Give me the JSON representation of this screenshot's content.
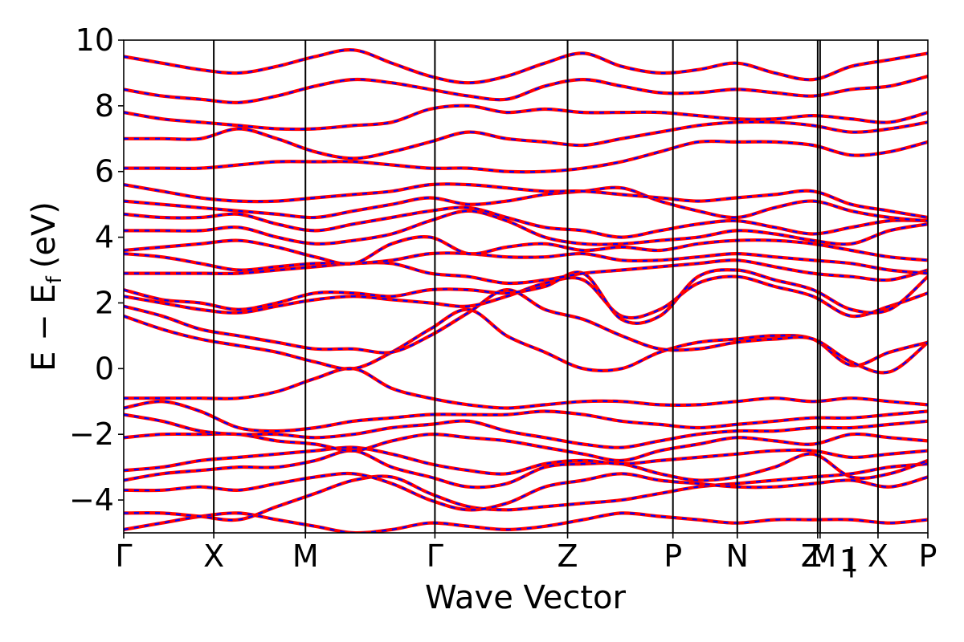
{
  "chart_data": {
    "type": "line",
    "title": "",
    "xlabel": "Wave Vector",
    "ylabel_main": "E − E",
    "ylabel_sub": "f",
    "ylabel_unit": "(eV)",
    "ylim": [
      -5,
      10
    ],
    "yticks": [
      -4,
      -2,
      0,
      2,
      4,
      6,
      8,
      10
    ],
    "ytick_labels": [
      "−4",
      "−2",
      "0",
      "2",
      "4",
      "6",
      "8",
      "10"
    ],
    "xlim": [
      0,
      1
    ],
    "kpoints": [
      {
        "label": "Γ",
        "x": 0.0
      },
      {
        "label": "X",
        "x": 0.112
      },
      {
        "label": "M",
        "x": 0.226
      },
      {
        "label": "Γ",
        "x": 0.387
      },
      {
        "label": "Z",
        "x": 0.552
      },
      {
        "label": "P",
        "x": 0.683
      },
      {
        "label": "N",
        "x": 0.763
      },
      {
        "label": "Z",
        "x": 0.863
      },
      {
        "label": "M",
        "x": 0.866
      },
      {
        "label": "X",
        "x": 0.938
      },
      {
        "label": "P",
        "x": 1.0
      }
    ],
    "kpoint_overlay_labels": [
      {
        "label": "Z",
        "x": 0.863
      },
      {
        "label": "M",
        "x": 0.866
      },
      {
        "label": "1",
        "x": 0.88
      },
      {
        "label": "|",
        "x": 0.905
      },
      {
        "label": "X",
        "x": 0.938
      },
      {
        "label": "P",
        "x": 1.0
      }
    ],
    "colors": {
      "spin_up": "#ff0000",
      "spin_down": "#0000ff"
    },
    "series": [
      {
        "color": "#ff0000",
        "style": "solid",
        "role": "bands"
      },
      {
        "color": "#0000ff",
        "style": "dashed",
        "role": "bands"
      }
    ],
    "bands": [
      [
        -4.9,
        -4.7,
        -4.5,
        -4.4,
        -4.6,
        -4.8,
        -5.0,
        -4.9,
        -4.7,
        -4.8,
        -4.9,
        -4.8,
        -4.6,
        -4.4,
        -4.5,
        -4.6,
        -4.7,
        -4.6,
        -4.6,
        -4.6,
        -4.7,
        -4.6
      ],
      [
        -4.4,
        -4.4,
        -4.5,
        -4.6,
        -4.2,
        -3.8,
        -3.4,
        -3.3,
        -3.8,
        -4.2,
        -4.3,
        -4.2,
        -4.1,
        -4.0,
        -3.8,
        -3.6,
        -3.5,
        -3.4,
        -3.3,
        -3.2,
        -3.0,
        -2.9
      ],
      [
        -3.7,
        -3.7,
        -3.6,
        -3.7,
        -3.5,
        -3.3,
        -3.2,
        -3.5,
        -4.0,
        -4.3,
        -4.1,
        -3.6,
        -3.4,
        -3.2,
        -3.4,
        -3.5,
        -3.6,
        -3.6,
        -3.5,
        -3.4,
        -3.6,
        -3.3
      ],
      [
        -3.4,
        -3.2,
        -3.1,
        -3.0,
        -3.0,
        -2.8,
        -2.5,
        -3.0,
        -3.3,
        -3.6,
        -3.5,
        -3.0,
        -2.9,
        -2.9,
        -3.2,
        -3.4,
        -3.3,
        -3.0,
        -2.6,
        -3.3,
        -3.2,
        -2.8
      ],
      [
        -3.1,
        -3.0,
        -2.8,
        -2.7,
        -2.6,
        -2.5,
        -2.4,
        -2.6,
        -2.9,
        -3.1,
        -3.2,
        -2.9,
        -2.8,
        -2.9,
        -2.8,
        -2.7,
        -2.6,
        -2.5,
        -2.5,
        -2.7,
        -2.6,
        -2.5
      ],
      [
        -2.1,
        -2.0,
        -2.0,
        -2.0,
        -2.2,
        -2.3,
        -2.5,
        -2.2,
        -2.0,
        -2.1,
        -2.2,
        -2.4,
        -2.6,
        -2.8,
        -2.5,
        -2.3,
        -2.1,
        -2.2,
        -2.3,
        -2.0,
        -2.1,
        -2.2
      ],
      [
        -1.4,
        -1.6,
        -1.9,
        -2.0,
        -2.0,
        -2.1,
        -2.0,
        -1.8,
        -1.7,
        -1.6,
        -1.9,
        -2.1,
        -2.3,
        -2.4,
        -2.2,
        -2.0,
        -1.9,
        -1.9,
        -1.8,
        -1.8,
        -1.7,
        -1.6
      ],
      [
        -1.2,
        -1.0,
        -1.3,
        -1.8,
        -1.9,
        -1.8,
        -1.6,
        -1.5,
        -1.4,
        -1.4,
        -1.4,
        -1.3,
        -1.4,
        -1.6,
        -1.7,
        -1.8,
        -1.7,
        -1.6,
        -1.5,
        -1.5,
        -1.4,
        -1.3
      ],
      [
        -0.9,
        -0.9,
        -0.9,
        -0.9,
        -0.7,
        -0.3,
        0.0,
        -0.6,
        -0.9,
        -1.1,
        -1.2,
        -1.1,
        -1.0,
        -1.0,
        -1.1,
        -1.1,
        -1.0,
        -0.9,
        -1.0,
        -0.9,
        -1.0,
        -1.1
      ],
      [
        1.6,
        1.2,
        0.9,
        0.7,
        0.5,
        0.2,
        0.0,
        0.5,
        1.2,
        1.8,
        1.0,
        0.5,
        0.0,
        0.0,
        0.5,
        0.8,
        0.9,
        1.0,
        0.9,
        0.1,
        0.5,
        0.8
      ],
      [
        1.9,
        1.6,
        1.2,
        1.0,
        0.8,
        0.6,
        0.6,
        0.5,
        1.0,
        1.7,
        2.4,
        1.8,
        1.5,
        1.0,
        0.6,
        0.6,
        0.8,
        0.9,
        0.9,
        0.2,
        -0.1,
        0.8
      ],
      [
        2.2,
        2.0,
        1.8,
        1.7,
        1.9,
        2.1,
        2.2,
        2.1,
        2.0,
        1.9,
        2.2,
        2.6,
        2.7,
        1.6,
        1.8,
        2.6,
        2.8,
        2.5,
        2.2,
        1.6,
        1.9,
        2.3
      ],
      [
        2.4,
        2.1,
        2.0,
        1.8,
        2.0,
        2.3,
        2.3,
        2.2,
        2.4,
        2.4,
        2.3,
        2.5,
        2.9,
        1.5,
        1.6,
        2.8,
        3.0,
        2.7,
        2.4,
        1.8,
        1.8,
        2.8
      ],
      [
        2.9,
        2.9,
        2.9,
        2.9,
        3.0,
        3.1,
        3.2,
        3.2,
        2.9,
        2.8,
        2.6,
        2.7,
        2.9,
        3.0,
        3.1,
        3.2,
        3.3,
        3.1,
        2.9,
        2.8,
        2.7,
        3.0
      ],
      [
        3.5,
        3.4,
        3.2,
        3.0,
        3.1,
        3.2,
        3.2,
        3.3,
        3.5,
        3.5,
        3.4,
        3.4,
        3.5,
        3.3,
        3.3,
        3.4,
        3.5,
        3.4,
        3.3,
        3.2,
        3.0,
        2.9
      ],
      [
        3.6,
        3.7,
        3.8,
        3.9,
        3.7,
        3.4,
        3.2,
        3.8,
        4.0,
        3.5,
        3.7,
        3.8,
        3.6,
        3.7,
        3.6,
        3.8,
        3.9,
        3.9,
        3.8,
        3.6,
        3.4,
        3.3
      ],
      [
        4.2,
        4.2,
        4.2,
        4.3,
        4.0,
        3.8,
        3.9,
        4.1,
        4.5,
        4.8,
        4.5,
        4.0,
        3.8,
        3.8,
        3.9,
        4.0,
        4.2,
        4.1,
        3.9,
        3.8,
        4.2,
        4.4
      ],
      [
        4.7,
        4.6,
        4.6,
        4.7,
        4.4,
        4.2,
        4.4,
        4.6,
        4.8,
        4.9,
        4.6,
        4.3,
        4.2,
        4.0,
        4.2,
        4.4,
        4.5,
        4.3,
        4.1,
        4.3,
        4.5,
        4.5
      ],
      [
        5.1,
        5.0,
        4.9,
        4.8,
        4.7,
        4.6,
        4.8,
        5.0,
        5.2,
        5.0,
        5.1,
        5.3,
        5.4,
        5.5,
        5.1,
        4.8,
        4.6,
        4.9,
        5.1,
        4.8,
        4.6,
        4.5
      ],
      [
        5.6,
        5.4,
        5.2,
        5.1,
        5.1,
        5.2,
        5.3,
        5.4,
        5.6,
        5.6,
        5.5,
        5.4,
        5.4,
        5.3,
        5.2,
        5.1,
        5.2,
        5.3,
        5.4,
        5.0,
        4.8,
        4.6
      ],
      [
        6.1,
        6.1,
        6.1,
        6.2,
        6.3,
        6.3,
        6.3,
        6.2,
        6.1,
        6.1,
        6.0,
        6.0,
        6.1,
        6.3,
        6.6,
        6.9,
        6.9,
        6.9,
        6.8,
        6.5,
        6.6,
        6.9
      ],
      [
        7.0,
        7.0,
        7.0,
        7.3,
        7.0,
        6.6,
        6.4,
        6.6,
        6.9,
        7.2,
        7.0,
        6.9,
        6.8,
        7.0,
        7.2,
        7.4,
        7.5,
        7.5,
        7.4,
        7.2,
        7.3,
        7.5
      ],
      [
        7.8,
        7.6,
        7.5,
        7.4,
        7.3,
        7.3,
        7.4,
        7.5,
        7.9,
        8.0,
        7.8,
        7.9,
        7.8,
        7.8,
        7.8,
        7.7,
        7.6,
        7.6,
        7.7,
        7.6,
        7.5,
        7.8
      ],
      [
        8.5,
        8.3,
        8.2,
        8.1,
        8.3,
        8.6,
        8.8,
        8.7,
        8.5,
        8.3,
        8.2,
        8.6,
        8.8,
        8.6,
        8.4,
        8.4,
        8.5,
        8.4,
        8.3,
        8.5,
        8.6,
        8.9
      ],
      [
        9.5,
        9.3,
        9.1,
        9.0,
        9.2,
        9.5,
        9.7,
        9.3,
        8.9,
        8.7,
        8.9,
        9.3,
        9.6,
        9.2,
        9.0,
        9.1,
        9.3,
        9.0,
        8.8,
        9.2,
        9.4,
        9.6
      ]
    ]
  }
}
